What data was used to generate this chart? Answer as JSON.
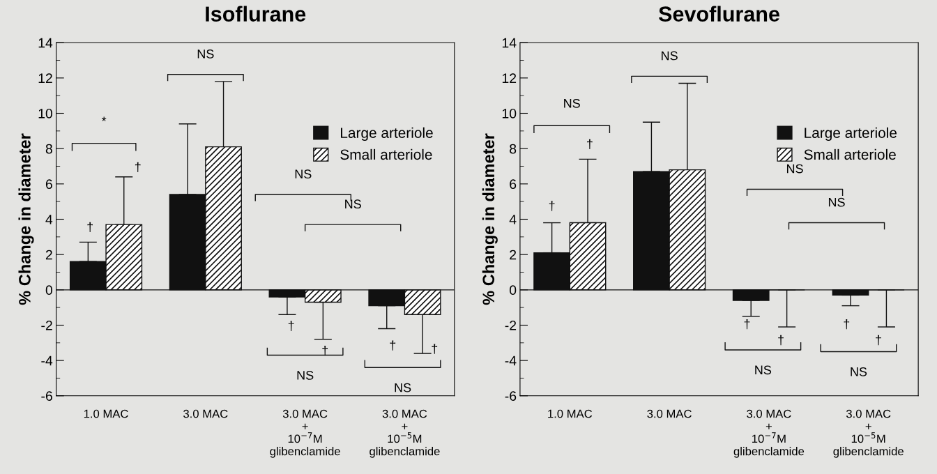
{
  "chart_data": [
    {
      "type": "bar",
      "title": "Isoflurane",
      "ylabel": "% Change in diameter",
      "categories": [
        "1.0 MAC",
        "3.0 MAC",
        "3.0 MAC\n+\n10$^{−7}$M\nglibenclamide",
        "3.0 MAC\n+\n10$^{−5}$M\nglibenclamide"
      ],
      "series": [
        {
          "name": "Large arteriole",
          "color": "#111111",
          "values": [
            1.6,
            5.4,
            -0.4,
            -0.9
          ],
          "errors": [
            [
              1.6,
              2.7
            ],
            [
              5.4,
              9.4
            ],
            [
              -1.4,
              -0.4
            ],
            [
              -2.2,
              -0.9
            ]
          ]
        },
        {
          "name": "Small arteriole",
          "color": "#111111",
          "values": [
            3.7,
            8.1,
            -0.7,
            -1.4
          ],
          "errors": [
            [
              3.7,
              6.4
            ],
            [
              8.1,
              11.8
            ],
            [
              -2.8,
              -0.7
            ],
            [
              -3.6,
              -1.4
            ]
          ]
        }
      ],
      "ylim": [
        -6,
        14
      ],
      "yticks": [
        -6,
        -4,
        -2,
        0,
        2,
        4,
        6,
        8,
        10,
        12,
        14
      ],
      "grid": false,
      "legend": "top right",
      "ref_lines": [
        {
          "axis": "y",
          "value": 0
        }
      ],
      "annotations": [
        "*",
        "†",
        "†",
        "NS",
        "NS",
        "NS",
        "†",
        "†",
        "NS",
        "†",
        "†",
        "NS"
      ]
    },
    {
      "type": "bar",
      "title": "Sevoflurane",
      "ylabel": "% Change in diameter",
      "categories": [
        "1.0 MAC",
        "3.0 MAC",
        "3.0 MAC\n+\n10$^{−7}$M\nglibenclamide",
        "3.0 MAC\n+\n10$^{−5}$M\nglibenclamide"
      ],
      "series": [
        {
          "name": "Large arteriole",
          "color": "#111111",
          "values": [
            2.1,
            6.7,
            -0.6,
            -0.3
          ],
          "errors": [
            [
              2.1,
              3.8
            ],
            [
              6.7,
              9.5
            ],
            [
              -1.5,
              -0.6
            ],
            [
              -0.9,
              -0.3
            ]
          ]
        },
        {
          "name": "Small arteriole",
          "color": "#111111",
          "values": [
            3.8,
            6.8,
            0,
            0
          ],
          "errors": [
            [
              3.8,
              7.4
            ],
            [
              6.8,
              11.7
            ],
            [
              -2.1,
              0
            ],
            [
              -2.1,
              0
            ]
          ]
        }
      ],
      "ylim": [
        -6,
        14
      ],
      "yticks": [
        -6,
        -4,
        -2,
        0,
        2,
        4,
        6,
        8,
        10,
        12,
        14
      ],
      "grid": false,
      "legend": "top right",
      "ref_lines": [
        {
          "axis": "y",
          "value": 0
        }
      ],
      "annotations": [
        "NS",
        "†",
        "†",
        "NS",
        "NS",
        "NS",
        "†",
        "†",
        "NS",
        "†",
        "†",
        "NS"
      ]
    }
  ]
}
